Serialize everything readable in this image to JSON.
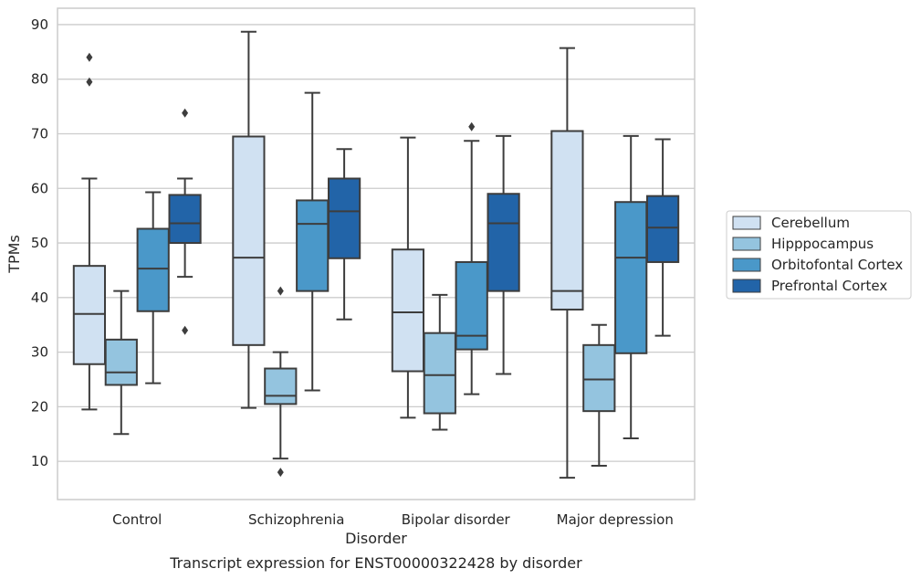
{
  "chart_data": {
    "type": "box",
    "xlabel": "Disorder",
    "ylabel": "TPMs",
    "caption": "Transcript expression for ENST00000322428 by disorder",
    "categories": [
      "Control",
      "Schizophrenia",
      "Bipolar disorder",
      "Major depression"
    ],
    "ylim": [
      3,
      93
    ],
    "yticks": [
      10,
      20,
      30,
      40,
      50,
      60,
      70,
      80,
      90
    ],
    "grid": "horizontal",
    "legend_position": "right",
    "series": [
      {
        "name": "Cerebellum",
        "color": "#d0e1f2",
        "boxes": [
          {
            "whisker_low": 19.5,
            "q1": 27.8,
            "median": 37.0,
            "q3": 45.8,
            "whisker_high": 61.8,
            "outliers": [
              79.5,
              84.0
            ]
          },
          {
            "whisker_low": 19.8,
            "q1": 31.3,
            "median": 47.3,
            "q3": 69.5,
            "whisker_high": 88.7,
            "outliers": []
          },
          {
            "whisker_low": 18.0,
            "q1": 26.5,
            "median": 37.3,
            "q3": 48.8,
            "whisker_high": 69.3,
            "outliers": []
          },
          {
            "whisker_low": 7.0,
            "q1": 37.8,
            "median": 41.2,
            "q3": 70.5,
            "whisker_high": 85.7,
            "outliers": []
          }
        ]
      },
      {
        "name": "Hipppocampus",
        "color": "#94c4df",
        "boxes": [
          {
            "whisker_low": 15.0,
            "q1": 24.0,
            "median": 26.3,
            "q3": 32.3,
            "whisker_high": 41.2,
            "outliers": []
          },
          {
            "whisker_low": 10.5,
            "q1": 20.5,
            "median": 22.0,
            "q3": 27.0,
            "whisker_high": 30.0,
            "outliers": [
              8.0,
              41.2
            ]
          },
          {
            "whisker_low": 15.8,
            "q1": 18.8,
            "median": 25.8,
            "q3": 33.5,
            "whisker_high": 40.5,
            "outliers": []
          },
          {
            "whisker_low": 9.2,
            "q1": 19.2,
            "median": 25.0,
            "q3": 31.3,
            "whisker_high": 35.0,
            "outliers": []
          }
        ]
      },
      {
        "name": "Orbitofontal Cortex",
        "color": "#4a98c9",
        "boxes": [
          {
            "whisker_low": 24.3,
            "q1": 37.5,
            "median": 45.3,
            "q3": 52.6,
            "whisker_high": 59.3,
            "outliers": []
          },
          {
            "whisker_low": 23.0,
            "q1": 41.2,
            "median": 53.5,
            "q3": 57.8,
            "whisker_high": 77.5,
            "outliers": []
          },
          {
            "whisker_low": 22.3,
            "q1": 30.5,
            "median": 33.0,
            "q3": 46.5,
            "whisker_high": 68.7,
            "outliers": [
              71.3
            ]
          },
          {
            "whisker_low": 14.2,
            "q1": 29.8,
            "median": 47.3,
            "q3": 57.5,
            "whisker_high": 69.6,
            "outliers": []
          }
        ]
      },
      {
        "name": "Prefrontal Cortex",
        "color": "#2264a8",
        "boxes": [
          {
            "whisker_low": 43.8,
            "q1": 50.0,
            "median": 53.6,
            "q3": 58.8,
            "whisker_high": 61.8,
            "outliers": [
              34.0,
              73.8
            ]
          },
          {
            "whisker_low": 36.0,
            "q1": 47.2,
            "median": 55.8,
            "q3": 61.8,
            "whisker_high": 67.2,
            "outliers": []
          },
          {
            "whisker_low": 26.0,
            "q1": 41.2,
            "median": 53.6,
            "q3": 59.0,
            "whisker_high": 69.6,
            "outliers": []
          },
          {
            "whisker_low": 33.0,
            "q1": 46.5,
            "median": 52.8,
            "q3": 58.6,
            "whisker_high": 69.0,
            "outliers": []
          }
        ]
      }
    ]
  }
}
